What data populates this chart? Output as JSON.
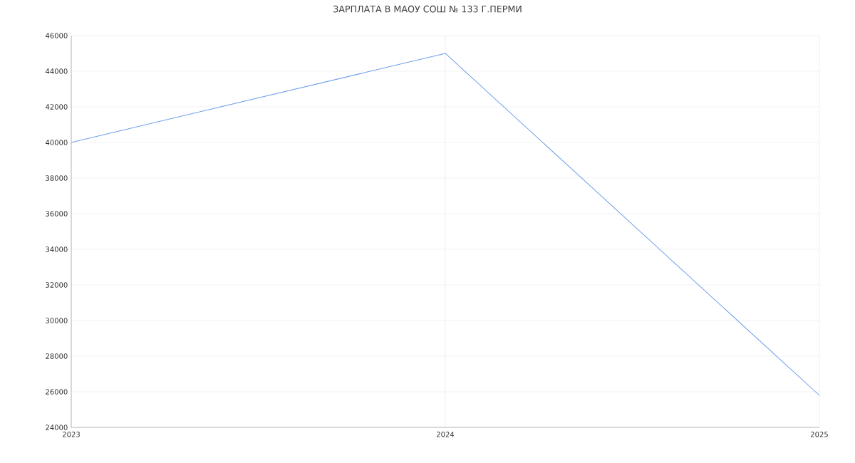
{
  "chart_data": {
    "type": "line",
    "title": "ЗАРПЛАТА В МАОУ СОШ № 133 Г.ПЕРМИ",
    "x": [
      2023,
      2024,
      2025
    ],
    "series": [
      {
        "color": "#6d9eeb",
        "values": [
          40000,
          45000,
          25800
        ]
      }
    ],
    "xlim": [
      2023,
      2025
    ],
    "xticks": [
      2023,
      2024,
      2025
    ],
    "ylim": [
      24000,
      46000
    ],
    "yticks": [
      24000,
      26000,
      28000,
      30000,
      32000,
      34000,
      36000,
      38000,
      40000,
      42000,
      44000,
      46000
    ],
    "grid": true,
    "marker": "none",
    "line_style": "solid"
  }
}
